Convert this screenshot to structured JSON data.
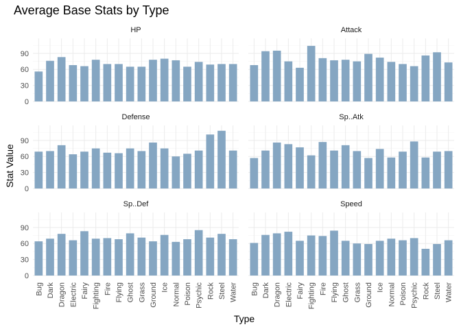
{
  "chart_data": {
    "type": "bar",
    "title": "Average Base Stats by Type",
    "xlabel": "Type",
    "ylabel": "Stat Value",
    "bar_color": "#85a6c2",
    "grid": true,
    "ylim": [
      0,
      118
    ],
    "y_ticks": [
      0,
      30,
      60,
      90
    ],
    "categories": [
      "Bug",
      "Dark",
      "Dragon",
      "Electric",
      "Fairy",
      "Fighting",
      "Fire",
      "Flying",
      "Ghost",
      "Grass",
      "Ground",
      "Ice",
      "Normal",
      "Poison",
      "Psychic",
      "Rock",
      "Steel",
      "Water"
    ],
    "facets": [
      {
        "name": "HP",
        "values": [
          56,
          76,
          83,
          68,
          66,
          78,
          70,
          70,
          65,
          65,
          78,
          80,
          77,
          65,
          74,
          69,
          70,
          70
        ]
      },
      {
        "name": "Attack",
        "values": [
          68,
          94,
          95,
          75,
          63,
          104,
          81,
          77,
          78,
          75,
          89,
          82,
          74,
          70,
          66,
          86,
          92,
          73
        ]
      },
      {
        "name": "Defense",
        "values": [
          69,
          70,
          81,
          64,
          69,
          75,
          67,
          66,
          75,
          70,
          86,
          75,
          60,
          65,
          71,
          101,
          108,
          71
        ]
      },
      {
        "name": "Sp..Atk",
        "values": [
          57,
          71,
          86,
          83,
          77,
          62,
          87,
          71,
          81,
          70,
          57,
          74,
          58,
          69,
          88,
          58,
          69,
          70
        ]
      },
      {
        "name": "Sp..Def",
        "values": [
          64,
          69,
          78,
          66,
          83,
          69,
          70,
          68,
          79,
          71,
          64,
          76,
          63,
          68,
          85,
          71,
          78,
          68
        ]
      },
      {
        "name": "Speed",
        "values": [
          61,
          76,
          79,
          82,
          65,
          75,
          74,
          84,
          65,
          60,
          59,
          65,
          69,
          66,
          70,
          50,
          59,
          66
        ]
      }
    ]
  }
}
